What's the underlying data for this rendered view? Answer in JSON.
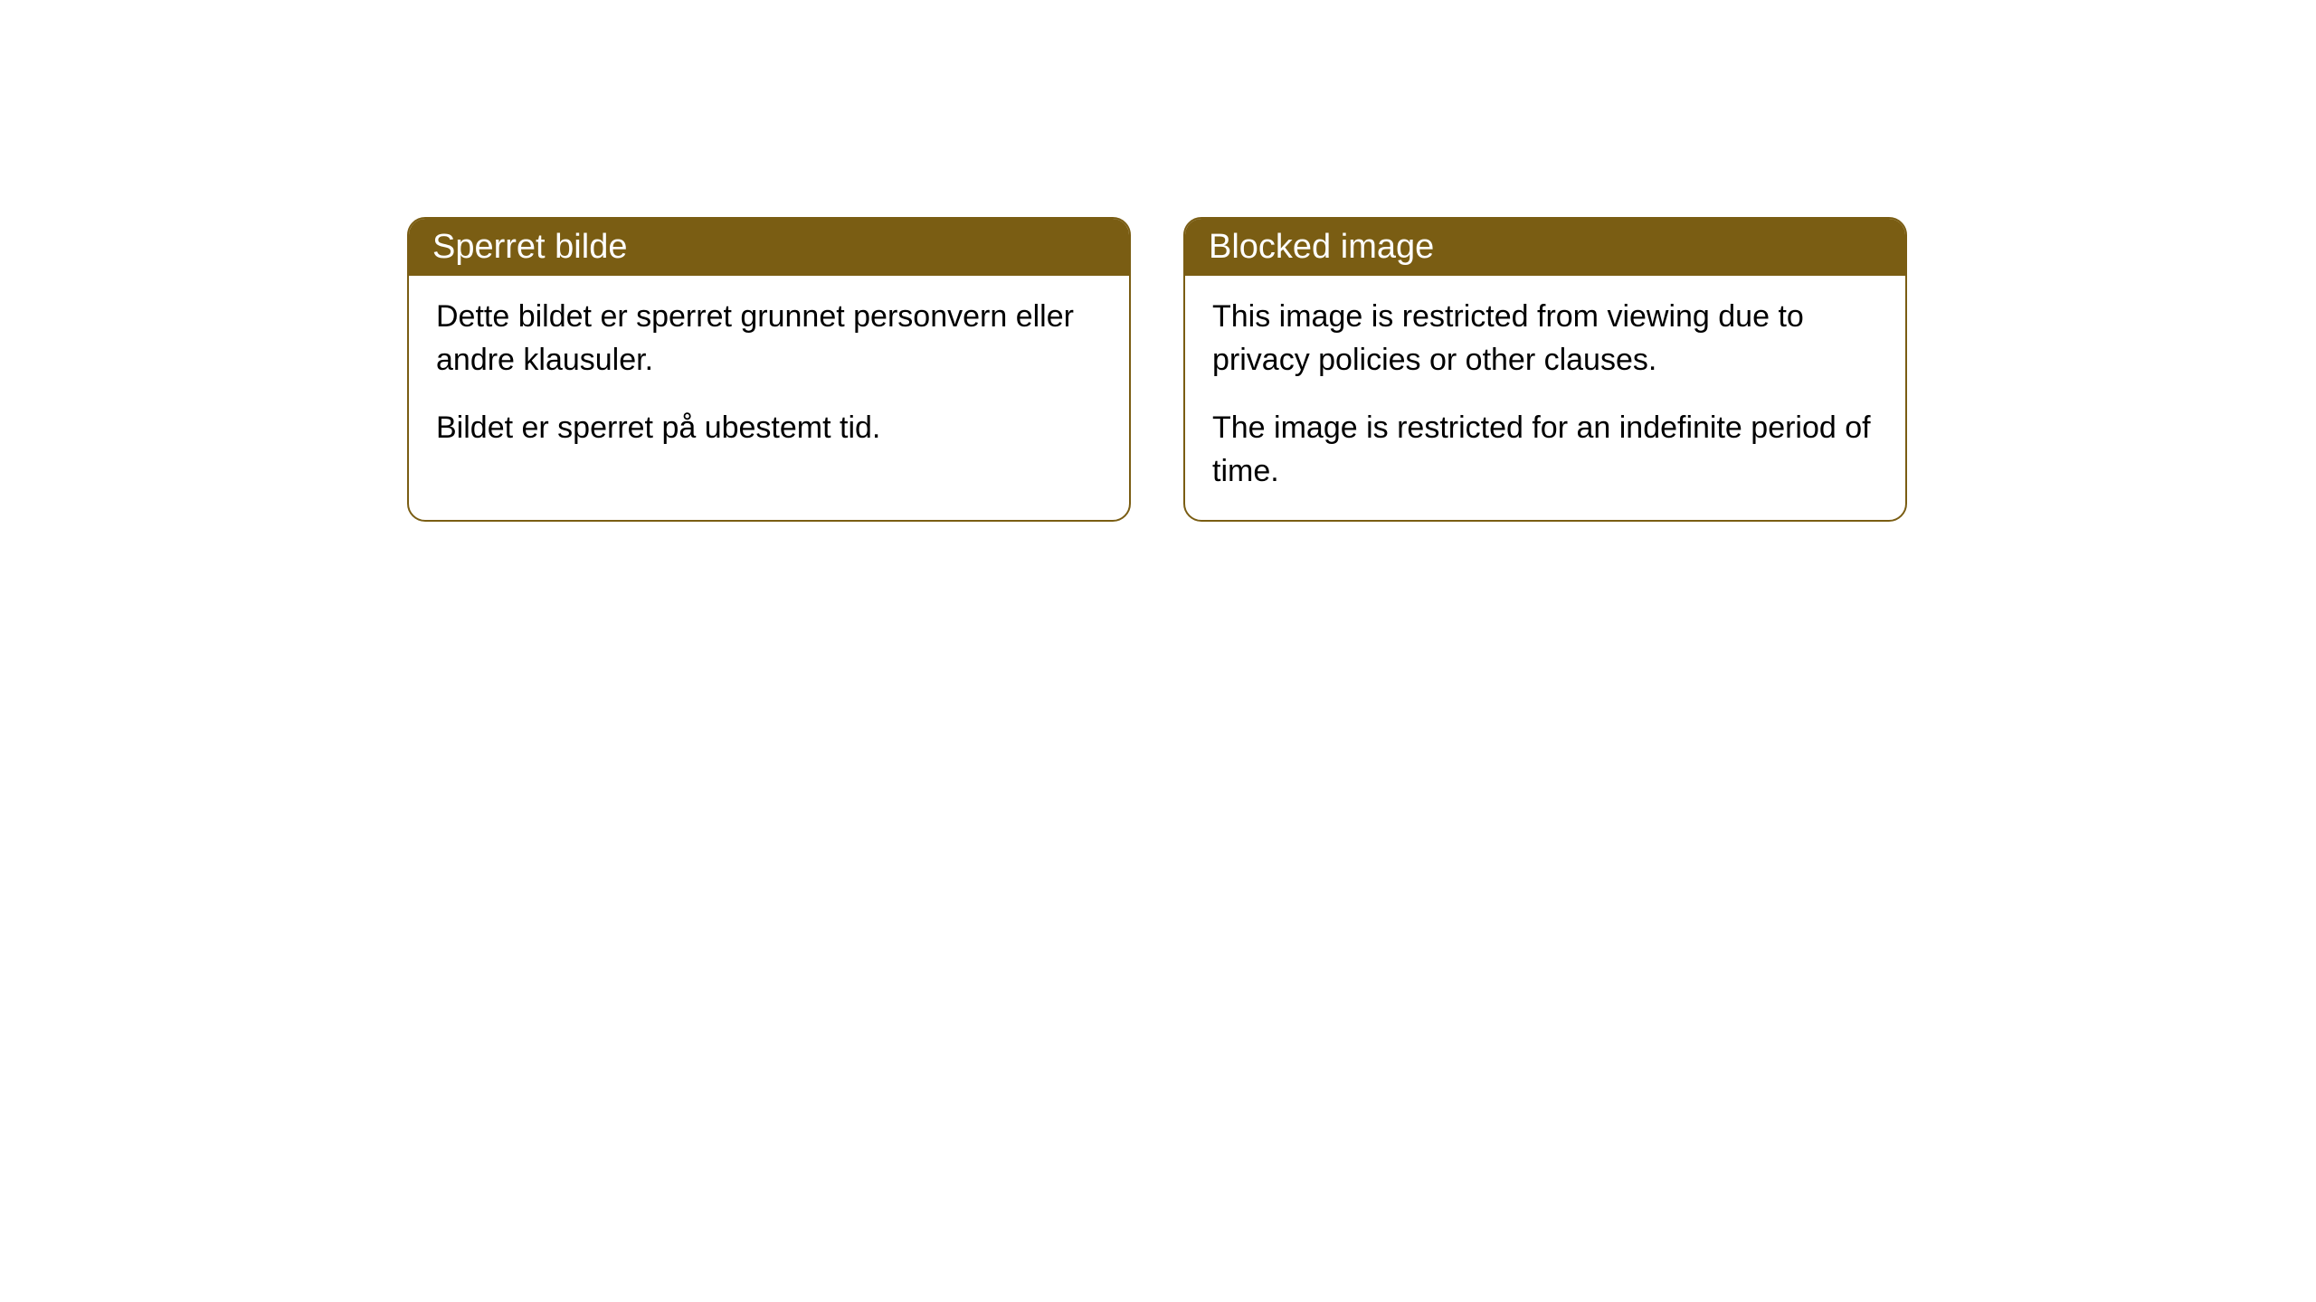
{
  "cards": [
    {
      "header": "Sperret bilde",
      "paragraph1": "Dette bildet er sperret grunnet personvern eller andre klausuler.",
      "paragraph2": "Bildet er sperret på ubestemt tid."
    },
    {
      "header": "Blocked image",
      "paragraph1": "This image is restricted from viewing due to privacy policies or other clauses.",
      "paragraph2": "The image is restricted for an indefinite period of time."
    }
  ],
  "colors": {
    "header_background": "#7a5d13",
    "header_text": "#ffffff",
    "border_color": "#7a5d13",
    "body_background": "#ffffff",
    "body_text": "#000000"
  }
}
